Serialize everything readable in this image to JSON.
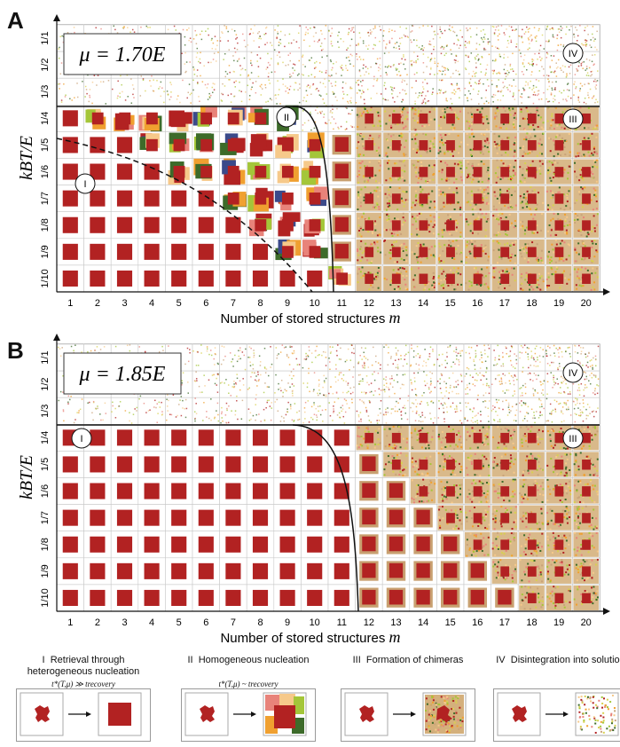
{
  "figure": {
    "panels": [
      {
        "letter": "A",
        "mu_label": "μ = 1.70E",
        "xlabel": "Number of stored structures",
        "xlabel_var": "m",
        "ylabel": "kBT/E",
        "x_ticks": [
          "1",
          "2",
          "3",
          "4",
          "5",
          "6",
          "7",
          "8",
          "9",
          "10",
          "11",
          "12",
          "13",
          "14",
          "15",
          "16",
          "17",
          "18",
          "19",
          "20"
        ],
        "y_ticks": [
          "1/1",
          "1/2",
          "1/3",
          "1/4",
          "1/5",
          "1/6",
          "1/7",
          "1/8",
          "1/9",
          "1/10"
        ],
        "region_labels": [
          "I",
          "II",
          "III",
          "IV"
        ]
      },
      {
        "letter": "B",
        "mu_label": "μ = 1.85E",
        "xlabel": "Number of stored structures",
        "xlabel_var": "m",
        "ylabel": "kBT/E",
        "x_ticks": [
          "1",
          "2",
          "3",
          "4",
          "5",
          "6",
          "7",
          "8",
          "9",
          "10",
          "11",
          "12",
          "13",
          "14",
          "15",
          "16",
          "17",
          "18",
          "19",
          "20"
        ],
        "y_ticks": [
          "1/1",
          "1/2",
          "1/3",
          "1/4",
          "1/5",
          "1/6",
          "1/7",
          "1/8",
          "1/9",
          "1/10"
        ],
        "region_labels": [
          "I",
          "III",
          "IV"
        ]
      }
    ],
    "legend": [
      {
        "numeral": "I",
        "title": "Retrieval through heterogeneous nucleation",
        "condition": "t*(T,μ) ≫ trecovery"
      },
      {
        "numeral": "II",
        "title": "Homogeneous nucleation",
        "condition": "t*(T,μ) ~ trecovery"
      },
      {
        "numeral": "III",
        "title": "Formation of chimeras",
        "condition": ""
      },
      {
        "numeral": "IV",
        "title": "Disintegration into solution",
        "condition": ""
      }
    ],
    "colors": {
      "red": "#b22222",
      "salmon": "#e8837a",
      "orange": "#f0a030",
      "green": "#3d6b2a",
      "lightgreen": "#a4c639",
      "navy": "#3b4a8a",
      "peach": "#f6c98a"
    }
  }
}
